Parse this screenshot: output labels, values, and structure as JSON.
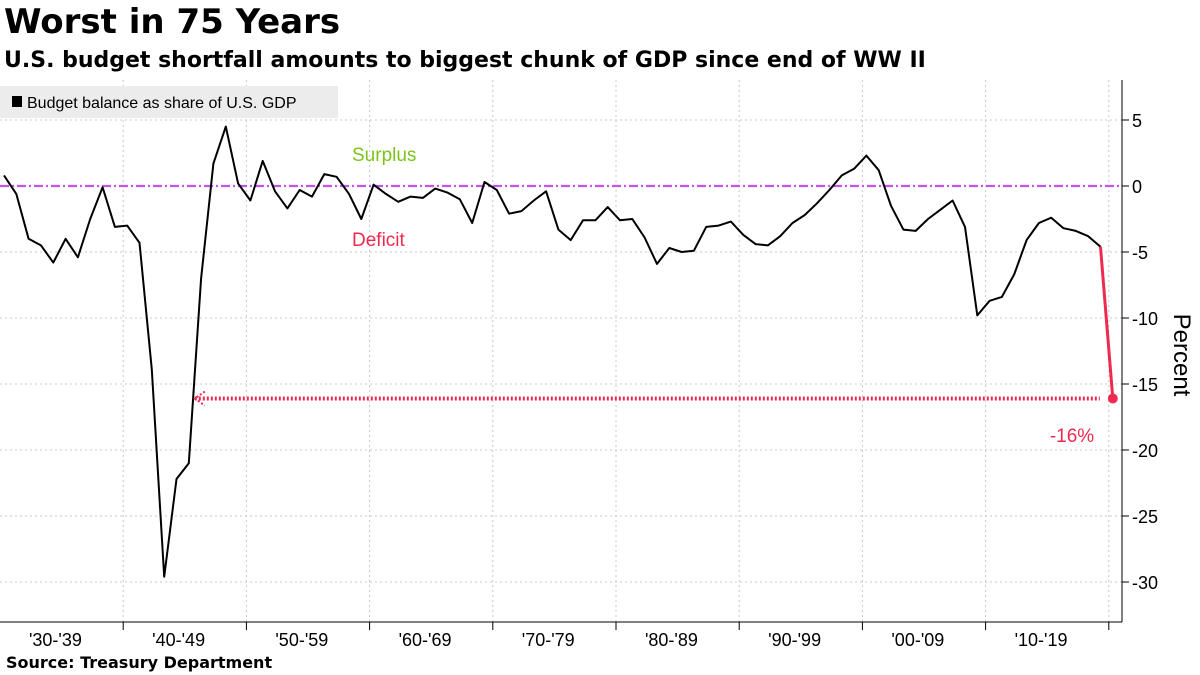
{
  "header": {
    "title": "Worst in 75 Years",
    "subtitle": "U.S. budget shortfall amounts to biggest chunk of GDP since end of WW II"
  },
  "footer": {
    "source": "Source: Treasury Department"
  },
  "colors": {
    "series": "#000000",
    "zero_line": "#c453f0",
    "surplus": "#7dc41a",
    "deficit": "#ee2a4f",
    "grid": "#c8c8c8"
  },
  "chart_data": {
    "type": "line",
    "title": "Worst in 75 Years",
    "subtitle": "U.S. budget shortfall amounts to biggest chunk of GDP since end of WW II",
    "ylabel": "Percent",
    "xlabel": "",
    "ylim": [
      -32,
      7.5
    ],
    "xlim": [
      1929.9,
      2023
    ],
    "y_ticks": [
      5,
      0,
      -5,
      -10,
      -15,
      -20,
      -25,
      -30
    ],
    "y_tick_labels": [
      "5",
      "0",
      "-5",
      "-10",
      "-15",
      "-20",
      "-25",
      "-30"
    ],
    "x_tick_labels": [
      "'30-'39",
      "'40-'49",
      "'50-'59",
      "'60-'69",
      "'70-'79",
      "'80-'89",
      "'90-'99",
      "'00-'09",
      "'10-'19"
    ],
    "x_tick_centers": [
      1934.5,
      1944.5,
      1954.5,
      1964.5,
      1974.5,
      1984.5,
      1994.5,
      2004.5,
      2014.5
    ],
    "grid": true,
    "legend": "top-left",
    "legend_entries": [
      "Budget balance as share of U.S. GDP"
    ],
    "annotations": {
      "surplus_label": "Surplus",
      "deficit_label": "Deficit",
      "callout_label": "-16%",
      "callout_value": -16.1,
      "callout_year": 2020,
      "arrow_to_year": 1945
    },
    "series": [
      {
        "name": "Budget balance as share of U.S. GDP",
        "x": [
          1930,
          1931,
          1932,
          1933,
          1934,
          1935,
          1936,
          1937,
          1938,
          1939,
          1940,
          1941,
          1942,
          1943,
          1944,
          1945,
          1946,
          1947,
          1948,
          1949,
          1950,
          1951,
          1952,
          1953,
          1954,
          1955,
          1956,
          1957,
          1958,
          1959,
          1960,
          1961,
          1962,
          1963,
          1964,
          1965,
          1966,
          1967,
          1968,
          1969,
          1970,
          1971,
          1972,
          1973,
          1974,
          1975,
          1976,
          1977,
          1978,
          1979,
          1980,
          1981,
          1982,
          1983,
          1984,
          1985,
          1986,
          1987,
          1988,
          1989,
          1990,
          1991,
          1992,
          1993,
          1994,
          1995,
          1996,
          1997,
          1998,
          1999,
          2000,
          2001,
          2002,
          2003,
          2004,
          2005,
          2006,
          2007,
          2008,
          2009,
          2010,
          2011,
          2012,
          2013,
          2014,
          2015,
          2016,
          2017,
          2018,
          2019,
          2020
        ],
        "values": [
          0.8,
          -0.6,
          -4.0,
          -4.5,
          -5.8,
          -4.0,
          -5.4,
          -2.5,
          -0.1,
          -3.1,
          -3.0,
          -4.3,
          -13.9,
          -29.6,
          -22.2,
          -21.0,
          -7.0,
          1.7,
          4.5,
          0.2,
          -1.1,
          1.9,
          -0.4,
          -1.7,
          -0.3,
          -0.8,
          0.9,
          0.7,
          -0.6,
          -2.5,
          0.1,
          -0.6,
          -1.2,
          -0.8,
          -0.9,
          -0.2,
          -0.5,
          -1.0,
          -2.8,
          0.3,
          -0.3,
          -2.1,
          -1.9,
          -1.1,
          -0.4,
          -3.3,
          -4.1,
          -2.6,
          -2.6,
          -1.6,
          -2.6,
          -2.5,
          -3.9,
          -5.9,
          -4.7,
          -5.0,
          -4.9,
          -3.1,
          -3.0,
          -2.7,
          -3.7,
          -4.4,
          -4.5,
          -3.8,
          -2.8,
          -2.2,
          -1.3,
          -0.3,
          0.8,
          1.3,
          2.3,
          1.2,
          -1.5,
          -3.3,
          -3.4,
          -2.5,
          -1.8,
          -1.1,
          -3.1,
          -9.8,
          -8.7,
          -8.4,
          -6.7,
          -4.1,
          -2.8,
          -2.4,
          -3.2,
          -3.4,
          -3.8,
          -4.6,
          -16.1
        ]
      }
    ]
  }
}
